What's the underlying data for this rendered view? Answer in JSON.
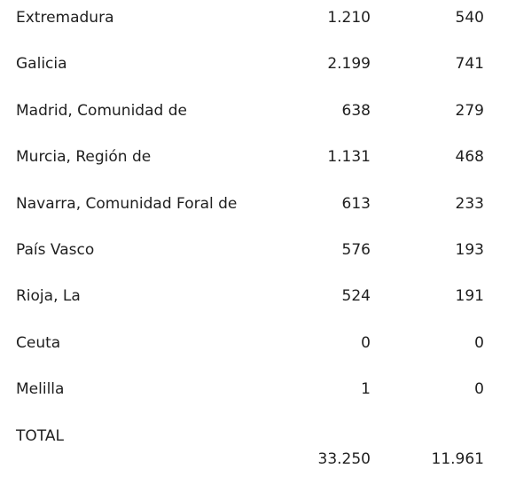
{
  "table": {
    "rows": [
      {
        "name": "Extremadura",
        "v1": "1.210",
        "v2": "540"
      },
      {
        "name": "Galicia",
        "v1": "2.199",
        "v2": "741"
      },
      {
        "name": "Madrid, Comunidad de",
        "v1": "638",
        "v2": "279"
      },
      {
        "name": "Murcia, Región de",
        "v1": "1.131",
        "v2": "468"
      },
      {
        "name": "Navarra, Comunidad Foral de",
        "v1": "613",
        "v2": "233"
      },
      {
        "name": "País Vasco",
        "v1": "576",
        "v2": "193"
      },
      {
        "name": "Rioja, La",
        "v1": "524",
        "v2": "191"
      },
      {
        "name": "Ceuta",
        "v1": "0",
        "v2": "0"
      },
      {
        "name": "Melilla",
        "v1": "1",
        "v2": "0"
      }
    ],
    "total": {
      "name": "TOTAL",
      "v1": "33.250",
      "v2": "11.961"
    }
  }
}
